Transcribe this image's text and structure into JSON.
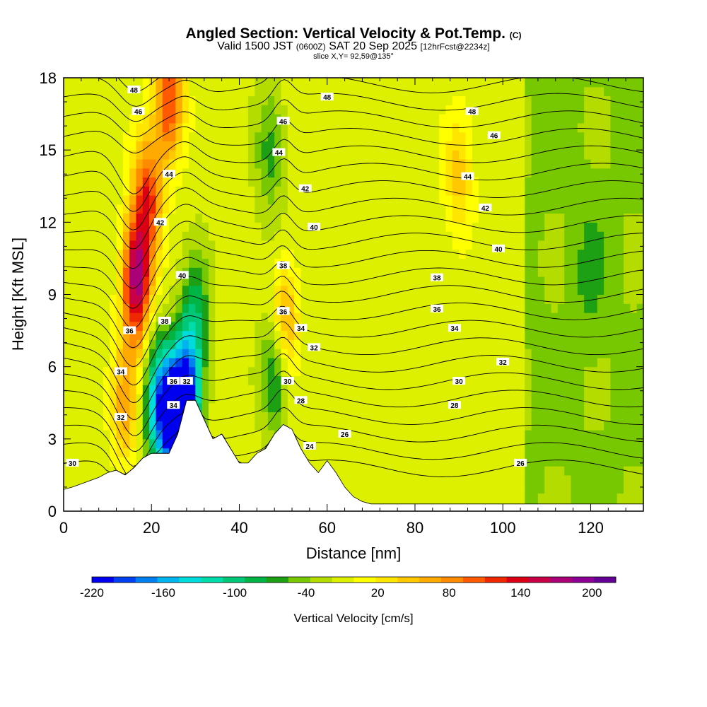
{
  "header": {
    "title": "Angled Section: Vertical Velocity & Pot.Temp.",
    "title_sup": "(C)",
    "valid_prefix": "Valid 1500 JST",
    "valid_zulu": "(0600Z)",
    "valid_date": "SAT 20 Sep 2025",
    "forecast": "[12hrFcst@2234z]",
    "slice": "slice X,Y= 92,59@135°"
  },
  "colors": {
    "terrain": "#ffffff",
    "contour": "#000000",
    "palette": [
      "#0000f0",
      "#0040f0",
      "#0080f0",
      "#00b4f0",
      "#00dcdc",
      "#00dcaa",
      "#00c878",
      "#00b446",
      "#1ea014",
      "#78c800",
      "#b4dc00",
      "#dcf000",
      "#ffff00",
      "#ffe600",
      "#ffc800",
      "#ffaa00",
      "#ff8c00",
      "#ff5a00",
      "#f02800",
      "#dc0014",
      "#c80046",
      "#aa0078",
      "#8c0096",
      "#640096"
    ]
  },
  "chart_data": {
    "type": "heatmap",
    "title": "Angled Section: Vertical Velocity & Pot.Temp.",
    "xlabel": "Distance [nm]",
    "ylabel": "Height [Kft MSL]",
    "xlim": [
      0,
      132
    ],
    "ylim": [
      0,
      18
    ],
    "xticks": [
      0,
      20,
      40,
      60,
      80,
      100,
      120
    ],
    "yticks": [
      0,
      3,
      6,
      9,
      12,
      15,
      18
    ],
    "colorbar": {
      "label": "Vertical Velocity [cm/s]",
      "range": [
        -220,
        220
      ],
      "step": 20,
      "ticks": [
        -220,
        -160,
        -100,
        -40,
        20,
        80,
        140,
        200
      ]
    },
    "terrain_profile": [
      [
        0,
        0.9
      ],
      [
        2,
        1.0
      ],
      [
        5,
        1.2
      ],
      [
        8,
        1.4
      ],
      [
        10,
        1.6
      ],
      [
        12,
        1.7
      ],
      [
        14,
        1.5
      ],
      [
        16,
        1.8
      ],
      [
        18,
        2.2
      ],
      [
        20,
        2.4
      ],
      [
        22,
        2.4
      ],
      [
        24,
        2.4
      ],
      [
        26,
        3.2
      ],
      [
        28,
        4.6
      ],
      [
        30,
        4.6
      ],
      [
        32,
        3.8
      ],
      [
        34,
        3.0
      ],
      [
        36,
        3.2
      ],
      [
        38,
        2.6
      ],
      [
        40,
        2.0
      ],
      [
        42,
        2.0
      ],
      [
        44,
        2.4
      ],
      [
        46,
        2.6
      ],
      [
        48,
        3.2
      ],
      [
        50,
        3.6
      ],
      [
        52,
        3.4
      ],
      [
        54,
        2.6
      ],
      [
        56,
        2.0
      ],
      [
        58,
        1.6
      ],
      [
        60,
        2.1
      ],
      [
        62,
        1.6
      ],
      [
        64,
        1.0
      ],
      [
        66,
        0.6
      ],
      [
        68,
        0.4
      ],
      [
        70,
        0.3
      ],
      [
        72,
        0.3
      ],
      [
        80,
        0.3
      ],
      [
        132,
        0.3
      ]
    ],
    "velocity_features": [
      {
        "x": 16.5,
        "z": 9.5,
        "value": 200
      },
      {
        "x": 14.0,
        "z": 4.5,
        "value": 80
      },
      {
        "x": 19.0,
        "z": 13.0,
        "value": 140
      },
      {
        "x": 24.0,
        "z": 17.0,
        "value": 140
      },
      {
        "x": 21.5,
        "z": 4.5,
        "value": -140
      },
      {
        "x": 25.0,
        "z": 3.8,
        "value": -200
      },
      {
        "x": 28.0,
        "z": 4.6,
        "value": -200
      },
      {
        "x": 30.0,
        "z": 8.0,
        "value": -80
      },
      {
        "x": 50.0,
        "z": 7.5,
        "value": 120
      },
      {
        "x": 48.5,
        "z": 6.0,
        "value": -120
      },
      {
        "x": 47.0,
        "z": 15.0,
        "value": -60
      },
      {
        "x": 90.0,
        "z": 14.0,
        "value": 60
      },
      {
        "x": 120.0,
        "z": 10.0,
        "value": -30
      }
    ],
    "theta_labels": [
      {
        "value": 48,
        "x": 16,
        "z": 17.5
      },
      {
        "value": 48,
        "x": 60,
        "z": 17.2
      },
      {
        "value": 48,
        "x": 93,
        "z": 16.6
      },
      {
        "value": 46,
        "x": 17,
        "z": 16.6
      },
      {
        "value": 46,
        "x": 50,
        "z": 16.2
      },
      {
        "value": 46,
        "x": 98,
        "z": 15.6
      },
      {
        "value": 44,
        "x": 24,
        "z": 14.0
      },
      {
        "value": 44,
        "x": 49,
        "z": 14.9
      },
      {
        "value": 44,
        "x": 92,
        "z": 13.9
      },
      {
        "value": 42,
        "x": 22,
        "z": 12.0
      },
      {
        "value": 42,
        "x": 55,
        "z": 13.4
      },
      {
        "value": 42,
        "x": 96,
        "z": 12.6
      },
      {
        "value": 40,
        "x": 27,
        "z": 9.8
      },
      {
        "value": 40,
        "x": 57,
        "z": 11.8
      },
      {
        "value": 40,
        "x": 99,
        "z": 10.9
      },
      {
        "value": 38,
        "x": 23,
        "z": 7.9
      },
      {
        "value": 38,
        "x": 50,
        "z": 10.2
      },
      {
        "value": 38,
        "x": 85,
        "z": 9.7
      },
      {
        "value": 36,
        "x": 15,
        "z": 7.5
      },
      {
        "value": 36,
        "x": 50,
        "z": 8.3
      },
      {
        "value": 36,
        "x": 85,
        "z": 8.4
      },
      {
        "value": 34,
        "x": 13,
        "z": 5.8
      },
      {
        "value": 34,
        "x": 54,
        "z": 7.6
      },
      {
        "value": 34,
        "x": 89,
        "z": 7.6
      },
      {
        "value": 32,
        "x": 13,
        "z": 3.9
      },
      {
        "value": 32,
        "x": 57,
        "z": 6.8
      },
      {
        "value": 32,
        "x": 100,
        "z": 6.2
      },
      {
        "value": 30,
        "x": 2,
        "z": 2.0
      },
      {
        "value": 30,
        "x": 51,
        "z": 5.4
      },
      {
        "value": 30,
        "x": 90,
        "z": 5.4
      },
      {
        "value": 28,
        "x": 54,
        "z": 4.6
      },
      {
        "value": 28,
        "x": 89,
        "z": 4.4
      },
      {
        "value": 26,
        "x": 64,
        "z": 3.2
      },
      {
        "value": 26,
        "x": 104,
        "z": 2.0
      },
      {
        "value": 24,
        "x": 56,
        "z": 2.7
      },
      {
        "value": 36,
        "x": 25,
        "z": 5.4
      },
      {
        "value": 32,
        "x": 28,
        "z": 5.4
      },
      {
        "value": 34,
        "x": 25,
        "z": 4.4
      }
    ]
  }
}
